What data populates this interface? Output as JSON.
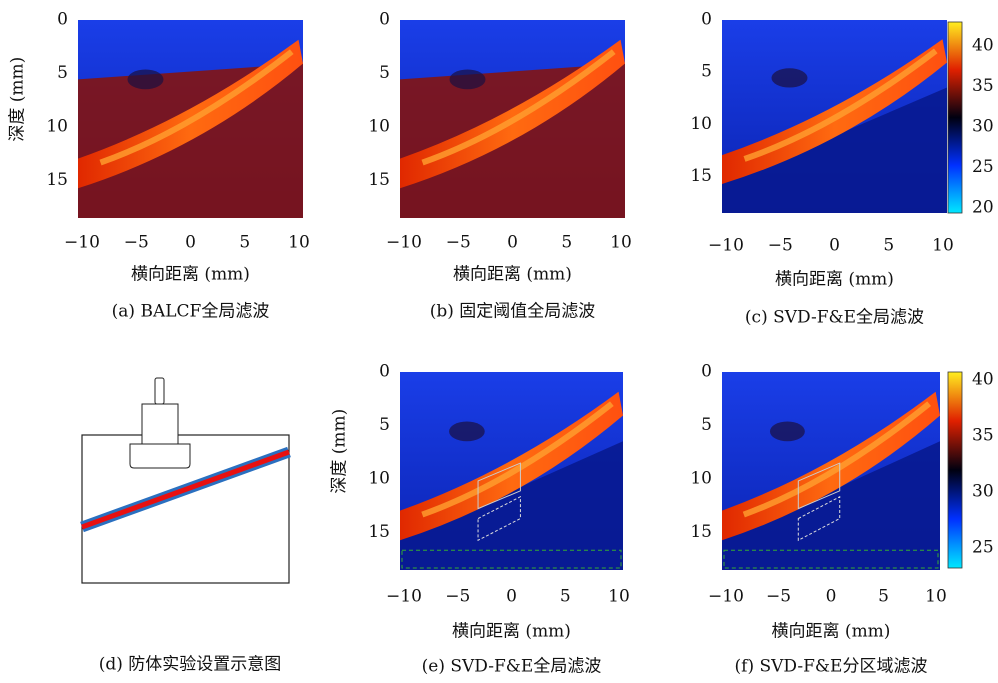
{
  "panels": [
    {
      "caption": "(a) BALCF全局滤波",
      "x_label": "横向距离 (mm)",
      "y_label": "深度 (mm)",
      "x_ticks": [
        "−10",
        "−5",
        "0",
        "5",
        "10"
      ],
      "y_ticks": [
        "0",
        "5",
        "10",
        "15"
      ]
    },
    {
      "caption": "(b) 固定阈值全局滤波",
      "x_label": "横向距离 (mm)",
      "x_ticks": [
        "−10",
        "−5",
        "0",
        "5",
        "10"
      ],
      "y_ticks": [
        "0",
        "5",
        "10",
        "15"
      ]
    },
    {
      "caption": "(c) SVD-F&E全局滤波",
      "x_label": "横向距离 (mm)",
      "x_ticks": [
        "−10",
        "−5",
        "0",
        "5",
        "10"
      ],
      "y_ticks": [
        "0",
        "5",
        "10",
        "15"
      ],
      "colorbar_ticks": [
        "40",
        "35",
        "30",
        "25",
        "20"
      ]
    },
    {
      "caption": "(d) 防体实验设置示意图"
    },
    {
      "caption": "(e) SVD-F&E全局滤波",
      "x_label": "横向距离 (mm)",
      "y_label": "深度 (mm)",
      "x_ticks": [
        "−10",
        "−5",
        "0",
        "5",
        "10"
      ],
      "y_ticks": [
        "0",
        "5",
        "10",
        "15"
      ]
    },
    {
      "caption": "(f) SVD-F&E分区域滤波",
      "x_label": "横向距离 (mm)",
      "x_ticks": [
        "−10",
        "−5",
        "0",
        "5",
        "10"
      ],
      "y_ticks": [
        "0",
        "5",
        "10",
        "15"
      ],
      "colorbar_ticks": [
        "40",
        "35",
        "30",
        "25"
      ]
    }
  ]
}
